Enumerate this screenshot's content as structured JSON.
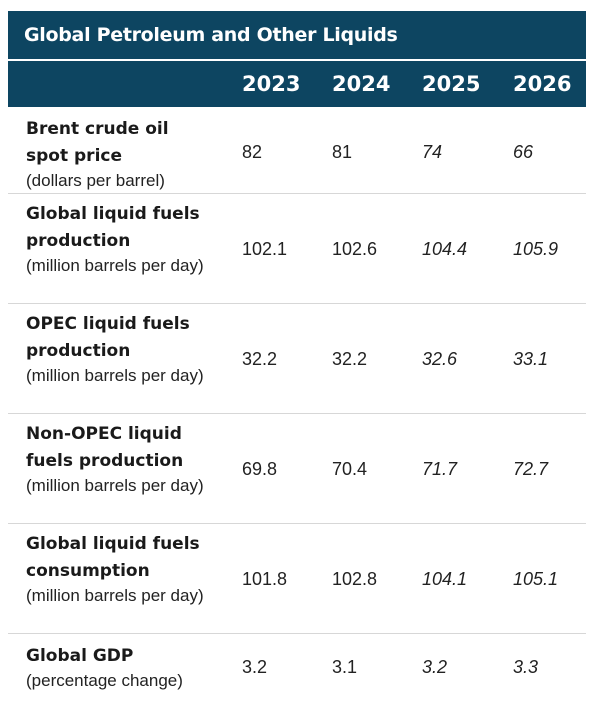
{
  "table": {
    "title": "Global Petroleum and Other Liquids",
    "years": [
      "2023",
      "2024",
      "2025",
      "2026"
    ],
    "rows": [
      {
        "name": "Brent crude oil spot price",
        "unit": "(dollars per barrel)",
        "values": [
          "82",
          "81",
          "74",
          "66"
        ]
      },
      {
        "name": "Global liquid fuels production",
        "unit": "(million barrels per day)",
        "values": [
          "102.1",
          "102.6",
          "104.4",
          "105.9"
        ]
      },
      {
        "name": "OPEC liquid fuels production",
        "unit": "(million barrels per day)",
        "values": [
          "32.2",
          "32.2",
          "32.6",
          "33.1"
        ]
      },
      {
        "name": "Non-OPEC liquid fuels production",
        "unit": "(million barrels per day)",
        "values": [
          "69.8",
          "70.4",
          "71.7",
          "72.7"
        ]
      },
      {
        "name": "Global liquid fuels consumption",
        "unit": "(million barrels per day)",
        "values": [
          "101.8",
          "102.8",
          "104.1",
          "105.1"
        ]
      },
      {
        "name": "Global GDP",
        "unit": "(percentage change)",
        "values": [
          "3.2",
          "3.1",
          "3.2",
          "3.3"
        ]
      }
    ]
  },
  "colors": {
    "header_background": "#0d4561",
    "header_text": "#ffffff"
  }
}
